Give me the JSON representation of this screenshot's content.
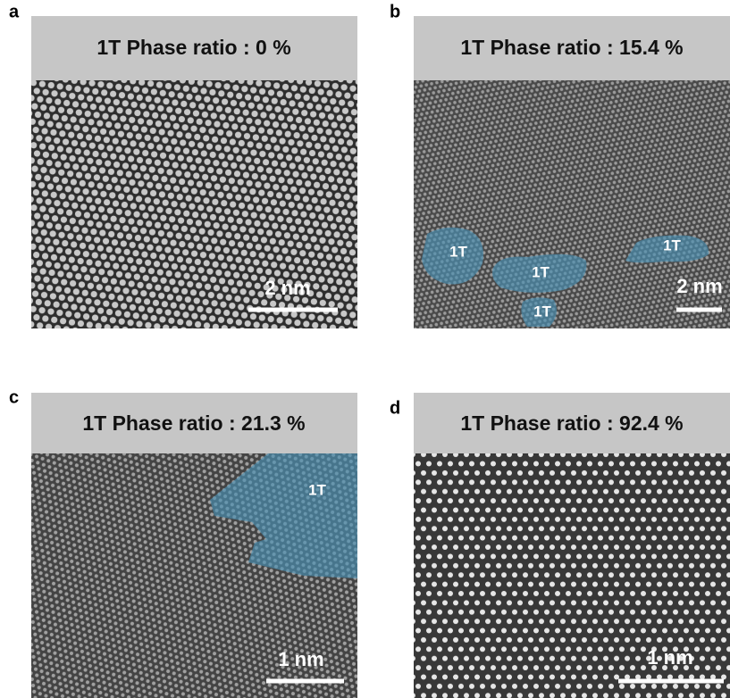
{
  "panels": [
    {
      "letter": "a",
      "title": "1T Phase ratio : 0 %",
      "scale_label": "2 nm",
      "regions": []
    },
    {
      "letter": "b",
      "title": "1T Phase ratio : 15.4 %",
      "scale_label": "2 nm",
      "regions": [
        "1T",
        "1T",
        "1T",
        "1T"
      ]
    },
    {
      "letter": "c",
      "title": "1T Phase ratio : 21.3 %",
      "scale_label": "1 nm",
      "regions": [
        "1T"
      ]
    },
    {
      "letter": "d",
      "title": "1T Phase ratio : 92.4 %",
      "scale_label": "1 nm",
      "regions": []
    }
  ]
}
